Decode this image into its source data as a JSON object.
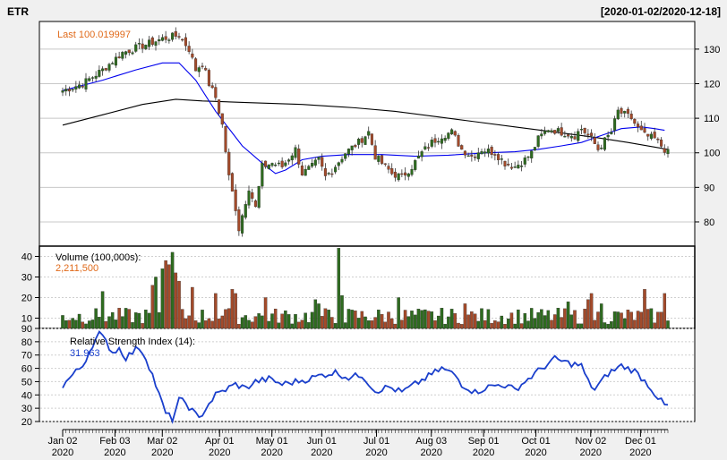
{
  "chart_data": [
    {
      "type": "candlestick",
      "symbol": "ETR",
      "date_range": "[2020-01-02/2020-12-18]",
      "last_label": "Last 100.019997",
      "ylim": [
        73,
        138
      ],
      "yticks": [
        80,
        90,
        100,
        110,
        120,
        130
      ],
      "grid": true,
      "up_color": "#2e6b1f",
      "down_color": "#a34a2a",
      "ma_short_color": "#0000ee",
      "ma_long_color": "#000000",
      "anchors_close": [
        [
          0,
          118
        ],
        [
          6,
          120
        ],
        [
          12,
          124
        ],
        [
          18,
          129
        ],
        [
          24,
          131
        ],
        [
          30,
          133
        ],
        [
          35,
          134
        ],
        [
          38,
          130
        ],
        [
          40,
          124
        ],
        [
          42,
          126
        ],
        [
          44,
          120
        ],
        [
          46,
          116
        ],
        [
          48,
          108
        ],
        [
          50,
          93
        ],
        [
          52,
          84
        ],
        [
          53,
          78
        ],
        [
          56,
          90
        ],
        [
          58,
          84
        ],
        [
          60,
          96
        ],
        [
          63,
          97
        ],
        [
          66,
          96
        ],
        [
          70,
          101
        ],
        [
          72,
          94
        ],
        [
          75,
          96
        ],
        [
          77,
          98
        ],
        [
          79,
          93
        ],
        [
          81,
          95
        ],
        [
          85,
          100
        ],
        [
          89,
          103
        ],
        [
          92,
          106
        ],
        [
          94,
          99
        ],
        [
          97,
          96
        ],
        [
          99,
          94
        ],
        [
          102,
          93
        ],
        [
          105,
          96
        ],
        [
          108,
          100
        ],
        [
          111,
          103
        ],
        [
          114,
          105
        ],
        [
          117,
          106
        ],
        [
          120,
          101
        ],
        [
          123,
          99
        ],
        [
          126,
          101
        ],
        [
          130,
          100
        ],
        [
          133,
          97
        ],
        [
          136,
          96
        ],
        [
          139,
          98
        ],
        [
          141,
          100
        ],
        [
          143,
          104
        ],
        [
          146,
          107
        ],
        [
          150,
          106
        ],
        [
          154,
          105
        ],
        [
          156,
          107
        ],
        [
          159,
          104
        ],
        [
          161,
          101
        ],
        [
          165,
          106
        ],
        [
          167,
          112
        ],
        [
          169,
          111
        ],
        [
          171,
          110
        ],
        [
          173,
          107
        ],
        [
          175,
          105
        ],
        [
          178,
          104
        ],
        [
          180,
          102
        ],
        [
          182,
          100
        ]
      ],
      "ma_short": [
        [
          0,
          118
        ],
        [
          12,
          121
        ],
        [
          22,
          124
        ],
        [
          30,
          126
        ],
        [
          35,
          126
        ],
        [
          40,
          121
        ],
        [
          46,
          112
        ],
        [
          54,
          102
        ],
        [
          60,
          97
        ],
        [
          64,
          94
        ],
        [
          67,
          95
        ],
        [
          72,
          98
        ],
        [
          78,
          99
        ],
        [
          86,
          99.5
        ],
        [
          96,
          99.5
        ],
        [
          106,
          99
        ],
        [
          116,
          99.3
        ],
        [
          128,
          100
        ],
        [
          136,
          100.3
        ],
        [
          143,
          101
        ],
        [
          150,
          102
        ],
        [
          156,
          103
        ],
        [
          162,
          105
        ],
        [
          168,
          107
        ],
        [
          174,
          107.5
        ],
        [
          178,
          107
        ],
        [
          181,
          106.5
        ]
      ],
      "ma_long": [
        [
          0,
          108
        ],
        [
          12,
          111
        ],
        [
          24,
          114
        ],
        [
          34,
          115.5
        ],
        [
          42,
          115
        ],
        [
          56,
          114.5
        ],
        [
          72,
          114
        ],
        [
          88,
          113
        ],
        [
          100,
          112
        ],
        [
          112,
          110.5
        ],
        [
          124,
          109
        ],
        [
          136,
          107.5
        ],
        [
          148,
          106
        ],
        [
          160,
          104.5
        ],
        [
          170,
          103
        ],
        [
          182,
          101
        ]
      ]
    },
    {
      "type": "bar",
      "title": "Volume (100,000s):",
      "last_value_label": "2,211,500",
      "ylim": [
        5,
        45
      ],
      "yticks": [
        10,
        20,
        30,
        40
      ],
      "spikes": [
        [
          12,
          23
        ],
        [
          27,
          26
        ],
        [
          28,
          30
        ],
        [
          30,
          34
        ],
        [
          31,
          38
        ],
        [
          32,
          36
        ],
        [
          33,
          42
        ],
        [
          34,
          32
        ],
        [
          35,
          28
        ],
        [
          39,
          25
        ],
        [
          46,
          22
        ],
        [
          51,
          24
        ],
        [
          52,
          22
        ],
        [
          61,
          20
        ],
        [
          76,
          19
        ],
        [
          77,
          17
        ],
        [
          83,
          44
        ],
        [
          84,
          21
        ],
        [
          101,
          20
        ],
        [
          121,
          17
        ],
        [
          152,
          18
        ],
        [
          158,
          19
        ],
        [
          159,
          22
        ],
        [
          162,
          17
        ],
        [
          175,
          24
        ],
        [
          181,
          22
        ]
      ]
    },
    {
      "type": "line",
      "title": "Relative Strength Index (14):",
      "last_value_label": "31.963",
      "ylim": [
        20,
        90
      ],
      "yticks": [
        20,
        30,
        40,
        50,
        60,
        70,
        80,
        90
      ],
      "color": "#1a3fcc",
      "anchors": [
        [
          0,
          47
        ],
        [
          3,
          55
        ],
        [
          6,
          62
        ],
        [
          9,
          78
        ],
        [
          11,
          86
        ],
        [
          13,
          80
        ],
        [
          15,
          72
        ],
        [
          17,
          75
        ],
        [
          19,
          68
        ],
        [
          21,
          72
        ],
        [
          23,
          76
        ],
        [
          25,
          68
        ],
        [
          27,
          55
        ],
        [
          29,
          40
        ],
        [
          31,
          26
        ],
        [
          33,
          22
        ],
        [
          35,
          36
        ],
        [
          37,
          34
        ],
        [
          39,
          28
        ],
        [
          41,
          22
        ],
        [
          43,
          30
        ],
        [
          46,
          40
        ],
        [
          49,
          44
        ],
        [
          52,
          48
        ],
        [
          55,
          45
        ],
        [
          58,
          50
        ],
        [
          62,
          52
        ],
        [
          66,
          48
        ],
        [
          70,
          50
        ],
        [
          74,
          52
        ],
        [
          78,
          55
        ],
        [
          82,
          57
        ],
        [
          86,
          53
        ],
        [
          90,
          55
        ],
        [
          94,
          43
        ],
        [
          98,
          46
        ],
        [
          102,
          42
        ],
        [
          106,
          48
        ],
        [
          110,
          54
        ],
        [
          114,
          60
        ],
        [
          118,
          55
        ],
        [
          120,
          48
        ],
        [
          124,
          42
        ],
        [
          128,
          46
        ],
        [
          132,
          48
        ],
        [
          136,
          44
        ],
        [
          140,
          52
        ],
        [
          144,
          60
        ],
        [
          148,
          67
        ],
        [
          152,
          64
        ],
        [
          156,
          62
        ],
        [
          158,
          50
        ],
        [
          160,
          44
        ],
        [
          164,
          56
        ],
        [
          168,
          62
        ],
        [
          172,
          58
        ],
        [
          176,
          48
        ],
        [
          179,
          38
        ],
        [
          181,
          32
        ]
      ]
    }
  ],
  "x_axis": {
    "labels": [
      {
        "month": "Jan 02",
        "year": "2020",
        "day": 0
      },
      {
        "month": "Feb 03",
        "year": "2020",
        "day": 21
      },
      {
        "month": "Mar 02",
        "year": "2020",
        "day": 40
      },
      {
        "month": "Apr 01",
        "year": "2020",
        "day": 63
      },
      {
        "month": "May 01",
        "year": "2020",
        "day": 84
      },
      {
        "month": "Jun 01",
        "year": "2020",
        "day": 104
      },
      {
        "month": "Jul 01",
        "year": "2020",
        "day": 126
      },
      {
        "month": "Aug 03",
        "year": "2020",
        "day": 148
      },
      {
        "month": "Sep 01",
        "year": "2020",
        "day": 169
      },
      {
        "month": "Oct 01",
        "year": "2020",
        "day": 190
      },
      {
        "month": "Nov 02",
        "year": "2020",
        "day": 212
      },
      {
        "month": "Dec 01",
        "year": "2020",
        "day": 232
      }
    ]
  }
}
